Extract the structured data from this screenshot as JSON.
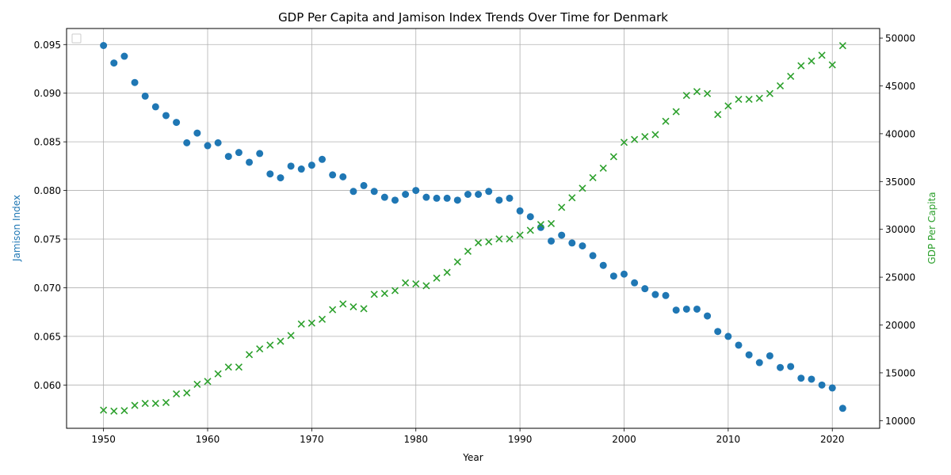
{
  "chart_data": {
    "type": "scatter",
    "title": "GDP Per Capita and Jamison Index Trends Over Time for Denmark",
    "xlabel": "Year",
    "ylabel_left": "Jamison Index",
    "ylabel_right": "GDP Per Capita",
    "xlim": [
      1946.45,
      2024.55
    ],
    "ylim_left": [
      0.05555,
      0.09665
    ],
    "ylim_right": [
      9200,
      51000
    ],
    "x_ticks": [
      1950,
      1960,
      1970,
      1980,
      1990,
      2000,
      2010,
      2020
    ],
    "y_ticks_left": [
      0.06,
      0.065,
      0.07,
      0.075,
      0.08,
      0.085,
      0.09,
      0.095
    ],
    "y_ticks_right": [
      10000,
      15000,
      20000,
      25000,
      30000,
      35000,
      40000,
      45000,
      50000
    ],
    "grid": true,
    "legend": "top-left (empty)",
    "colors": {
      "jamison": "#1f77b4",
      "gdp": "#2ca02c"
    },
    "x": [
      1950,
      1951,
      1952,
      1953,
      1954,
      1955,
      1956,
      1957,
      1958,
      1959,
      1960,
      1961,
      1962,
      1963,
      1964,
      1965,
      1966,
      1967,
      1968,
      1969,
      1970,
      1971,
      1972,
      1973,
      1974,
      1975,
      1976,
      1977,
      1978,
      1979,
      1980,
      1981,
      1982,
      1983,
      1984,
      1985,
      1986,
      1987,
      1988,
      1989,
      1990,
      1991,
      1992,
      1993,
      1994,
      1995,
      1996,
      1997,
      1998,
      1999,
      2000,
      2001,
      2002,
      2003,
      2004,
      2005,
      2006,
      2007,
      2008,
      2009,
      2010,
      2011,
      2012,
      2013,
      2014,
      2015,
      2016,
      2017,
      2018,
      2019,
      2020,
      2021
    ],
    "series": [
      {
        "axis": "left",
        "marker": "circle",
        "values": [
          0.0949,
          0.0931,
          0.0938,
          0.0911,
          0.0897,
          0.0886,
          0.0877,
          0.087,
          0.0849,
          0.0859,
          0.0846,
          0.0849,
          0.0835,
          0.0839,
          0.0829,
          0.0838,
          0.0817,
          0.0813,
          0.0825,
          0.0822,
          0.0826,
          0.0832,
          0.0816,
          0.0814,
          0.0799,
          0.0805,
          0.0799,
          0.0793,
          0.079,
          0.0796,
          0.08,
          0.0793,
          0.0792,
          0.0792,
          0.079,
          0.0796,
          0.0796,
          0.0799,
          0.079,
          0.0792,
          0.0779,
          0.0773,
          0.0762,
          0.0748,
          0.0754,
          0.0746,
          0.0743,
          0.0733,
          0.0723,
          0.0712,
          0.0714,
          0.0705,
          0.0699,
          0.0693,
          0.0692,
          0.0677,
          0.0678,
          0.0678,
          0.0671,
          0.0655,
          0.065,
          0.0641,
          0.0631,
          0.0623,
          0.063,
          0.0618,
          0.0619,
          0.0607,
          0.0606,
          0.06,
          0.0597,
          0.0576
        ]
      },
      {
        "axis": "right",
        "marker": "x",
        "values": [
          11100,
          11000,
          11050,
          11600,
          11800,
          11800,
          11900,
          12800,
          12900,
          13800,
          14100,
          14900,
          15600,
          15600,
          16900,
          17500,
          17900,
          18300,
          18900,
          20100,
          20200,
          20600,
          21600,
          22200,
          21900,
          21700,
          23200,
          23300,
          23600,
          24400,
          24300,
          24100,
          24900,
          25500,
          26600,
          27700,
          28600,
          28700,
          29000,
          29000,
          29400,
          29900,
          30500,
          30600,
          32300,
          33300,
          34300,
          35400,
          36400,
          37600,
          39100,
          39400,
          39700,
          39900,
          41300,
          42300,
          44000,
          44400,
          44200,
          42000,
          42900,
          43600,
          43600,
          43700,
          44200,
          45000,
          46000,
          47100,
          47600,
          48200,
          47200,
          49200
        ]
      }
    ]
  }
}
